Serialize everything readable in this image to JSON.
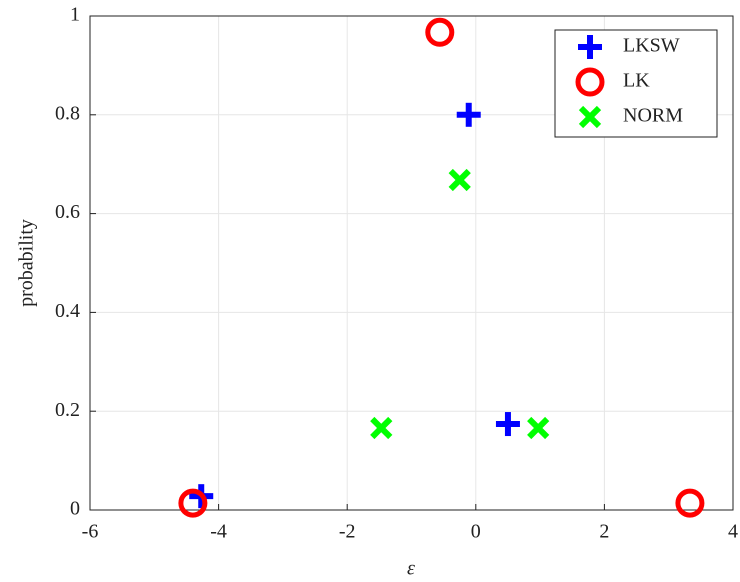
{
  "chart_data": {
    "type": "scatter",
    "x_label": "ε",
    "y_label": "probability",
    "xlim": [
      -6,
      4
    ],
    "xticks": [
      -6,
      -4,
      -2,
      0,
      2,
      4
    ],
    "ylim": [
      0,
      1
    ],
    "yticks": [
      0,
      0.2,
      0.4,
      0.6,
      0.8,
      1
    ],
    "grid": true,
    "legend": "northeast",
    "series": [
      {
        "name": "LKSW",
        "color": "#0000ff",
        "marker": "plus",
        "x": [
          -4.27,
          -0.11,
          0.5
        ],
        "values": [
          0.028,
          0.8,
          0.174
        ]
      },
      {
        "name": "LK",
        "color": "#ff0000",
        "marker": "circle",
        "x": [
          -4.4,
          -0.56,
          3.33
        ],
        "values": [
          0.014,
          0.967,
          0.014
        ]
      },
      {
        "name": "NORM",
        "color": "#00ff00",
        "marker": "x",
        "x": [
          -0.25,
          -1.47,
          0.97
        ],
        "values": [
          0.668,
          0.166,
          0.166
        ]
      }
    ]
  }
}
